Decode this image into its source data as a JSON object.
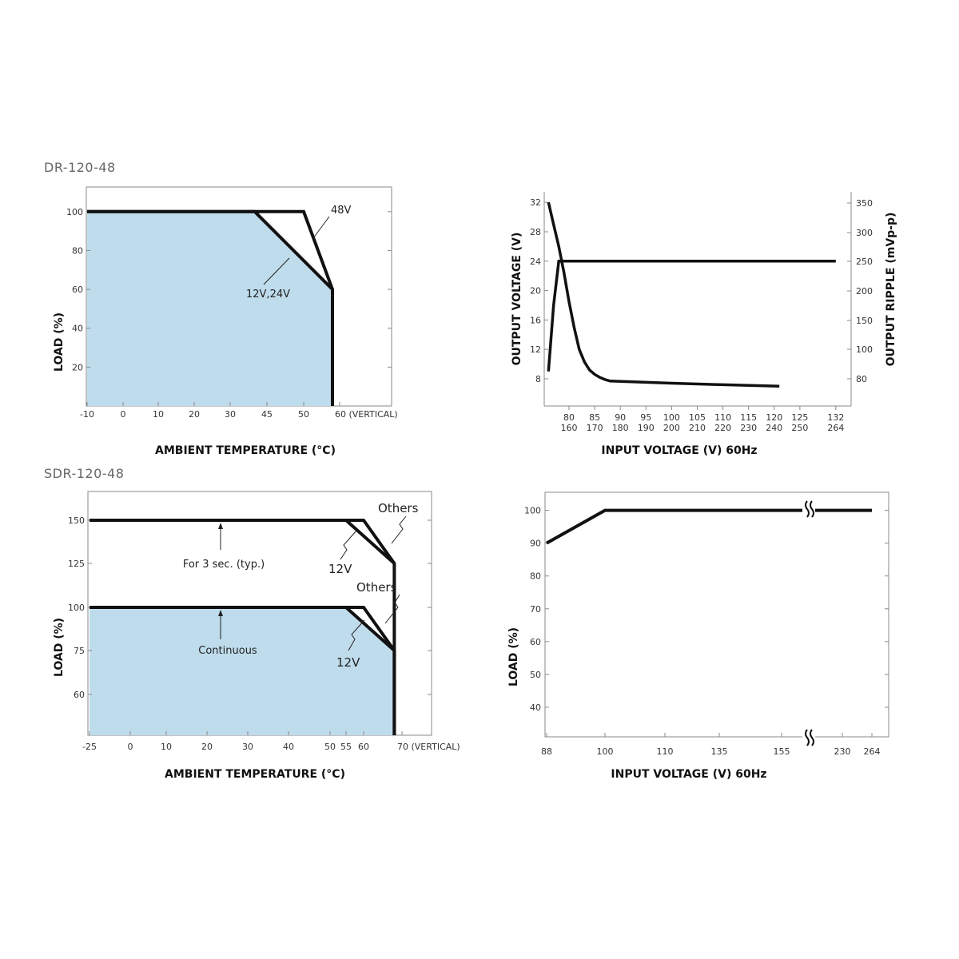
{
  "sections": {
    "top_title": "DR-120-48",
    "bottom_title": "SDR-120-48"
  },
  "chart_data": [
    {
      "id": "dr_derating",
      "type": "line",
      "xlabel": "AMBIENT TEMPERATURE (°C)",
      "ylabel": "LOAD (%)",
      "x_ticks": [
        "-10",
        "0",
        "10",
        "20",
        "30",
        "45",
        "50",
        "60 (VERTICAL)"
      ],
      "y_ticks": [
        "20",
        "40",
        "60",
        "80",
        "100"
      ],
      "fill_color": "#bfdcec",
      "series": [
        {
          "name": "48V",
          "x": [
            -10,
            40,
            50,
            58,
            58
          ],
          "y": [
            100,
            100,
            100,
            60,
            0
          ]
        },
        {
          "name": "12V,24V",
          "x": [
            -10,
            40,
            58,
            58
          ],
          "y": [
            100,
            100,
            60,
            0
          ]
        }
      ]
    },
    {
      "id": "dr_output_ripple",
      "type": "line",
      "xlabel": "INPUT VOLTAGE (V) 60Hz",
      "ylabel": "OUTPUT VOLTAGE (V)",
      "ylabel_right": "OUTPUT RIPPLE (mVp-p)",
      "x_ticks_top": [
        "80",
        "85",
        "90",
        "95",
        "100",
        "105",
        "110",
        "115",
        "120",
        "125",
        "132"
      ],
      "x_ticks_bottom": [
        "160",
        "170",
        "180",
        "190",
        "200",
        "210",
        "220",
        "230",
        "240",
        "250",
        "264"
      ],
      "y_ticks": [
        "8",
        "12",
        "16",
        "20",
        "24",
        "28",
        "32"
      ],
      "y2_ticks": [
        "80",
        "100",
        "150",
        "200",
        "250",
        "300",
        "350"
      ],
      "series": [
        {
          "x": [
            76,
            77,
            78,
            132
          ],
          "y": [
            9,
            18,
            24,
            24
          ]
        },
        {
          "x": [
            76,
            77,
            78,
            79,
            80,
            81,
            82,
            83,
            84,
            85,
            86,
            87,
            88,
            100,
            110,
            121
          ],
          "y": [
            32,
            29,
            26,
            22.5,
            18.5,
            15,
            12,
            10.3,
            9.2,
            8.6,
            8.2,
            7.9,
            7.7,
            7.4,
            7.2,
            7.0
          ]
        }
      ]
    },
    {
      "id": "sdr_derating",
      "type": "line",
      "xlabel": "AMBIENT TEMPERATURE (°C)",
      "ylabel": "LOAD (%)",
      "x_ticks": [
        "-25",
        "0",
        "10",
        "20",
        "30",
        "40",
        "50",
        "55",
        "60",
        "70 (VERTICAL)"
      ],
      "y_ticks": [
        "60",
        "75",
        "100",
        "125",
        "150"
      ],
      "fill_color": "#bfdcec",
      "annotations": {
        "peak_label": "For 3 sec. (typ.)",
        "cont_label": "Continuous",
        "others_upper": "Others",
        "v12_upper": "12V",
        "others_lower": "Others",
        "v12_lower": "12V"
      },
      "series": [
        {
          "x": [
            -25,
            55,
            60,
            68,
            68
          ],
          "y": [
            150,
            150,
            150,
            125,
            0
          ]
        },
        {
          "x": [
            55,
            68
          ],
          "y": [
            150,
            125
          ]
        },
        {
          "x": [
            -25,
            55,
            60,
            68,
            68
          ],
          "y": [
            100,
            100,
            100,
            75,
            0
          ]
        },
        {
          "x": [
            55,
            68
          ],
          "y": [
            100,
            75
          ]
        }
      ]
    },
    {
      "id": "sdr_input_derating",
      "type": "line",
      "xlabel": "INPUT VOLTAGE (V) 60Hz",
      "ylabel": "LOAD (%)",
      "x_ticks": [
        "88",
        "100",
        "110",
        "135",
        "155",
        "230",
        "264"
      ],
      "y_ticks": [
        "40",
        "50",
        "60",
        "70",
        "80",
        "90",
        "100"
      ],
      "series": [
        {
          "x": [
            88,
            100,
            264
          ],
          "y": [
            90,
            100,
            100
          ]
        }
      ]
    }
  ]
}
